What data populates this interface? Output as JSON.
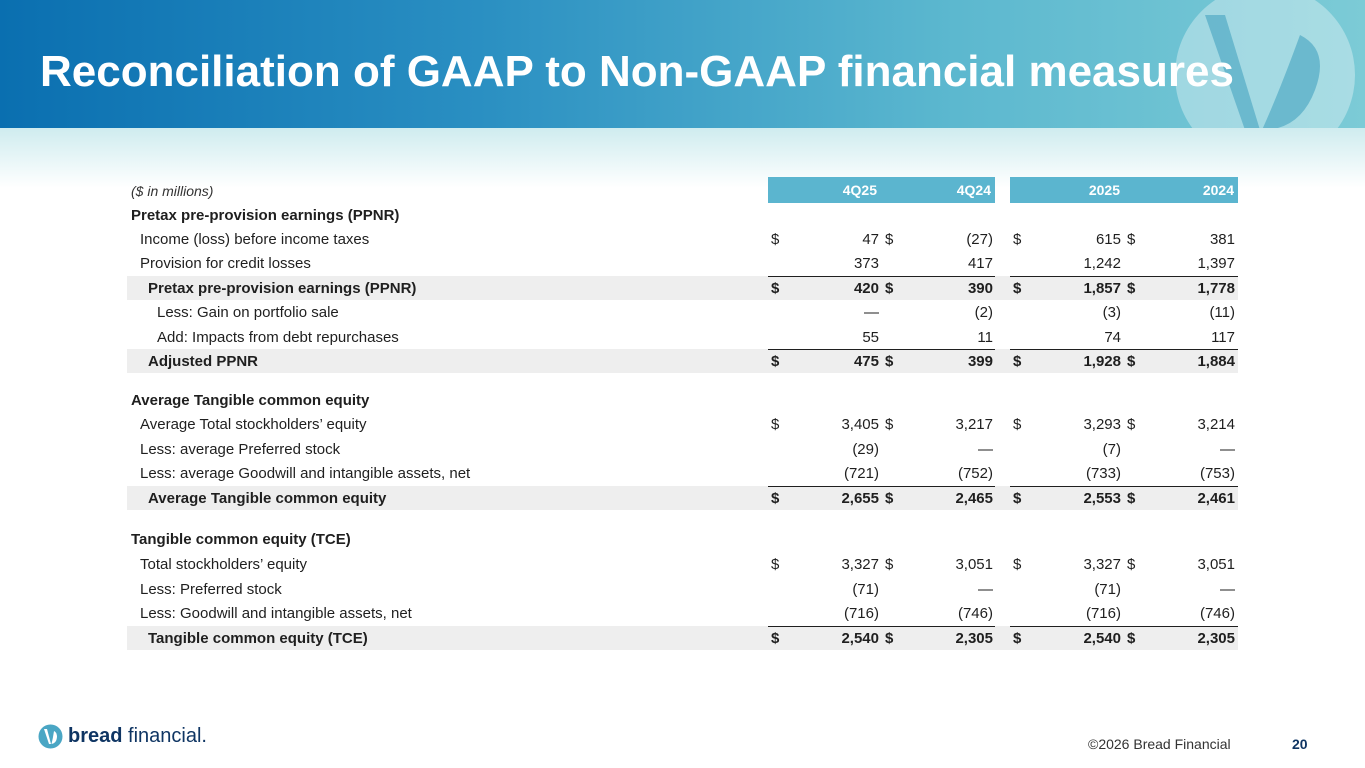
{
  "title": "Reconciliation of GAAP to Non-GAAP financial measures",
  "units_label": "($ in millions)",
  "columns": [
    "4Q25",
    "4Q24",
    "2025",
    "2024"
  ],
  "currency_symbol": "$",
  "rows": [
    {
      "label": "Pretax pre-provision earnings (PPNR)",
      "indent": 0,
      "type": "section",
      "values": [
        "",
        "",
        "",
        ""
      ]
    },
    {
      "label": "Income (loss) before income taxes",
      "indent": 1,
      "type": "normal",
      "dollar": true,
      "values": [
        "47",
        "(27)",
        "615",
        "381"
      ]
    },
    {
      "label": "Provision for credit losses",
      "indent": 1,
      "type": "normal",
      "dollar": false,
      "values": [
        "373",
        "417",
        "1,242",
        "1,397"
      ]
    },
    {
      "label": "Pretax pre-provision earnings (PPNR)",
      "indent": 2,
      "type": "total",
      "dollar": true,
      "values": [
        "420",
        "390",
        "1,857",
        "1,778"
      ]
    },
    {
      "label": "Less: Gain on portfolio sale",
      "indent": 3,
      "type": "normal",
      "dollar": false,
      "values": [
        "—",
        "(2)",
        "(3)",
        "(11)"
      ]
    },
    {
      "label": "Add: Impacts from debt repurchases",
      "indent": 3,
      "type": "normal",
      "dollar": false,
      "values": [
        "55",
        "11",
        "74",
        "117"
      ]
    },
    {
      "label": "Adjusted PPNR",
      "indent": 2,
      "type": "total",
      "dollar": true,
      "values": [
        "475",
        "399",
        "1,928",
        "1,884"
      ]
    },
    {
      "label": "Average Tangible common equity",
      "indent": 0,
      "type": "section",
      "values": [
        "",
        "",
        "",
        ""
      ]
    },
    {
      "label": "Average Total stockholders’ equity",
      "indent": 1,
      "type": "normal",
      "dollar": true,
      "values": [
        "3,405",
        "3,217",
        "3,293",
        "3,214"
      ]
    },
    {
      "label": "Less: average Preferred stock",
      "indent": 1,
      "type": "normal",
      "dollar": false,
      "values": [
        "(29)",
        "—",
        "(7)",
        "—"
      ]
    },
    {
      "label": "Less: average Goodwill and intangible assets, net",
      "indent": 1,
      "type": "normal",
      "dollar": false,
      "values": [
        "(721)",
        "(752)",
        "(733)",
        "(753)"
      ]
    },
    {
      "label": "Average Tangible common equity",
      "indent": 2,
      "type": "total",
      "dollar": true,
      "values": [
        "2,655",
        "2,465",
        "2,553",
        "2,461"
      ]
    },
    {
      "label": "Tangible common equity (TCE)",
      "indent": 0,
      "type": "section",
      "values": [
        "",
        "",
        "",
        ""
      ]
    },
    {
      "label": "Total stockholders’ equity",
      "indent": 1,
      "type": "normal",
      "dollar": true,
      "values": [
        "3,327",
        "3,051",
        "3,327",
        "3,051"
      ]
    },
    {
      "label": "Less: Preferred stock",
      "indent": 1,
      "type": "normal",
      "dollar": false,
      "values": [
        "(71)",
        "—",
        "(71)",
        "—"
      ]
    },
    {
      "label": "Less: Goodwill and intangible assets, net",
      "indent": 1,
      "type": "normal",
      "dollar": false,
      "values": [
        "(716)",
        "(746)",
        "(716)",
        "(746)"
      ]
    },
    {
      "label": "Tangible common equity (TCE)",
      "indent": 2,
      "type": "total",
      "dollar": true,
      "values": [
        "2,540",
        "2,305",
        "2,540",
        "2,305"
      ]
    }
  ],
  "footer": {
    "brand_bold": "bread",
    "brand_light": "financial",
    "brand_mark": ".",
    "copyright": "©2026 Bread Financial",
    "page_number": "20"
  },
  "colors": {
    "header_fill": "#5bb5cf",
    "brand_navy": "#0f3563",
    "total_fill": "#eeeeee"
  }
}
